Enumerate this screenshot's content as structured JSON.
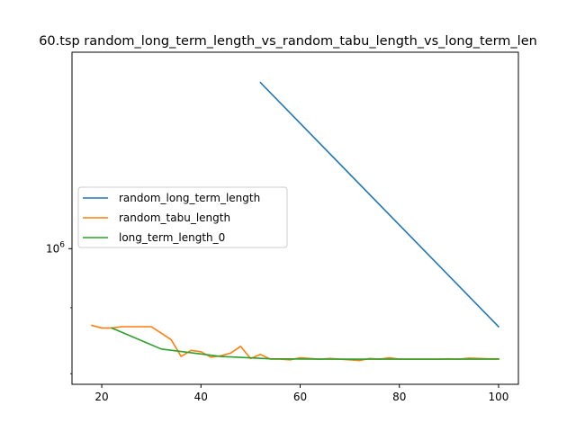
{
  "chart_data": {
    "type": "line",
    "title": "60.tsp  random_long_term_length_vs_random_tabu_length_vs_long_term_len",
    "xlabel": "",
    "ylabel": "",
    "xlim": [
      14,
      104
    ],
    "ylim": [
      785000,
      1420000
    ],
    "yscale": "log",
    "grid": false,
    "legend_position": "center-left",
    "x_ticks": [
      20,
      40,
      60,
      80,
      100
    ],
    "x_tick_labels": [
      "20",
      "40",
      "60",
      "80",
      "100"
    ],
    "y_ticks": [
      1000000
    ],
    "y_tick_labels": [
      "10^6"
    ],
    "series": [
      {
        "name": "random_long_term_length",
        "color": "#1f77b4",
        "x": [
          52,
          100
        ],
        "y": [
          1345000,
          870000
        ]
      },
      {
        "name": "random_tabu_length",
        "color": "#ff7f0e",
        "x": [
          18,
          20,
          22,
          24,
          26,
          28,
          30,
          32,
          34,
          36,
          38,
          40,
          42,
          44,
          46,
          48,
          50,
          52,
          54,
          56,
          58,
          60,
          62,
          64,
          66,
          68,
          70,
          72,
          74,
          76,
          78,
          80,
          82,
          84,
          86,
          88,
          90,
          92,
          94,
          96,
          98,
          100
        ],
        "y": [
          872000,
          868000,
          868000,
          870000,
          870000,
          870000,
          870000,
          860000,
          850000,
          825000,
          834000,
          832000,
          824000,
          826000,
          830000,
          840000,
          822000,
          828000,
          821000,
          821000,
          820000,
          823000,
          822000,
          821000,
          822000,
          821000,
          820000,
          819000,
          822000,
          821000,
          823000,
          821000,
          821000,
          821000,
          821000,
          821000,
          821500,
          821000,
          822500,
          822000,
          821500,
          821500
        ]
      },
      {
        "name": "long_term_length_0",
        "color": "#2ca02c",
        "x": [
          22,
          32,
          44,
          54,
          64,
          74,
          84,
          94,
          100
        ],
        "y": [
          868000,
          836000,
          825000,
          821500,
          821000,
          821000,
          821000,
          821000,
          821000
        ]
      }
    ]
  }
}
